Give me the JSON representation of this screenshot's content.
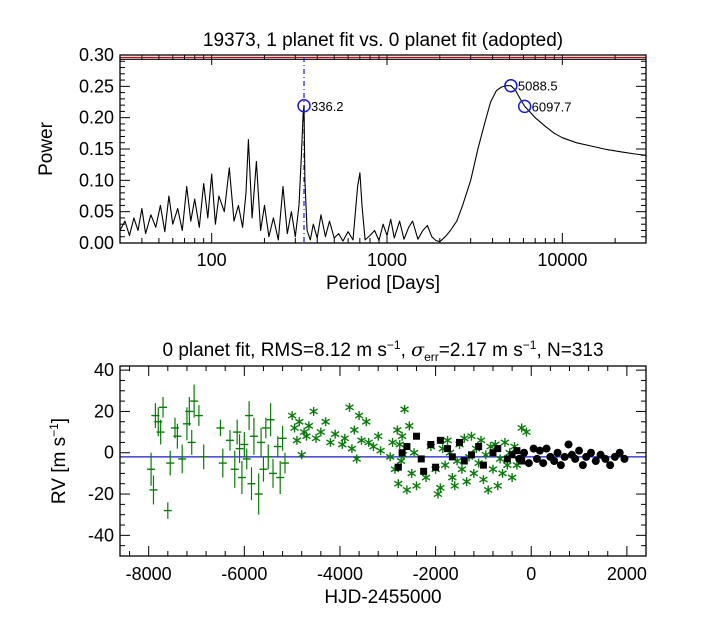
{
  "chart_data": [
    {
      "type": "line",
      "name": "periodogram",
      "title": "19373,  1 planet fit vs. 0 planet fit (adopted)",
      "xlabel": "Period [Days]",
      "ylabel": "Power",
      "xscale": "log",
      "xlim": [
        30,
        30000
      ],
      "ylim": [
        0,
        0.3
      ],
      "x_ticks": [
        100,
        1000,
        10000
      ],
      "x_tick_labels": [
        "100",
        "1000",
        "10000"
      ],
      "y_ticks": [
        0.0,
        0.05,
        0.1,
        0.15,
        0.2,
        0.25,
        0.3
      ],
      "y_tick_labels": [
        "0.00",
        "0.05",
        "0.10",
        "0.15",
        "0.20",
        "0.25",
        "0.30"
      ],
      "threshold_lines": [
        {
          "power": 0.296,
          "color": "#d40000"
        },
        {
          "power": 0.293,
          "color": "#222222"
        }
      ],
      "marker_line": {
        "period": 336.2,
        "color": "#1a1ad0",
        "style": "dash-dot"
      },
      "peaks": [
        {
          "period": 336.2,
          "power": 0.219,
          "label": "336.2"
        },
        {
          "period": 5088.5,
          "power": 0.251,
          "label": "5088.5"
        },
        {
          "period": 6097.7,
          "power": 0.218,
          "label": "6097.7"
        }
      ],
      "curve": {
        "period": [
          30,
          32,
          34,
          36,
          38,
          40,
          42,
          45,
          48,
          51,
          54,
          57,
          60,
          64,
          68,
          72,
          76,
          80,
          85,
          90,
          95,
          100,
          105,
          110,
          118,
          126,
          134,
          142,
          150,
          157,
          162,
          170,
          180,
          190,
          200,
          212,
          225,
          240,
          255,
          270,
          285,
          300,
          315,
          325,
          332,
          336.2,
          340,
          350,
          365,
          380,
          400,
          420,
          445,
          470,
          500,
          530,
          560,
          600,
          640,
          680,
          700,
          720,
          750,
          800,
          850,
          900,
          950,
          1000,
          1050,
          1100,
          1180,
          1250,
          1330,
          1400,
          1500,
          1600,
          1700,
          1800,
          1900,
          2000,
          2150,
          2300,
          2500,
          2700,
          3000,
          3300,
          3600,
          3900,
          4200,
          4500,
          4800,
          5088.5,
          5400,
          5700,
          6097.7,
          6500,
          7000,
          8000,
          9000,
          10000,
          12000,
          15000,
          18000,
          22000,
          26000,
          30000
        ],
        "power": [
          0.02,
          0.035,
          0.012,
          0.04,
          0.02,
          0.055,
          0.015,
          0.045,
          0.025,
          0.06,
          0.018,
          0.075,
          0.03,
          0.055,
          0.02,
          0.09,
          0.035,
          0.07,
          0.025,
          0.095,
          0.04,
          0.11,
          0.03,
          0.075,
          0.05,
          0.12,
          0.035,
          0.06,
          0.025,
          0.08,
          0.165,
          0.04,
          0.13,
          0.02,
          0.06,
          0.01,
          0.04,
          0.005,
          0.09,
          0.015,
          0.05,
          0.01,
          0.06,
          0.14,
          0.205,
          0.219,
          0.1,
          0.02,
          0.005,
          0.03,
          0.008,
          0.045,
          0.01,
          0.035,
          0.008,
          0.015,
          0.003,
          0.018,
          0.005,
          0.09,
          0.112,
          0.06,
          0.005,
          0.012,
          0.02,
          0.004,
          0.03,
          0.012,
          0.038,
          0.008,
          0.035,
          0.006,
          0.025,
          0.035,
          0.006,
          0.02,
          0.028,
          0.01,
          0.004,
          0.002,
          0.01,
          0.02,
          0.035,
          0.06,
          0.1,
          0.15,
          0.19,
          0.225,
          0.243,
          0.249,
          0.251,
          0.251,
          0.244,
          0.232,
          0.218,
          0.21,
          0.2,
          0.186,
          0.175,
          0.168,
          0.16,
          0.154,
          0.149,
          0.145,
          0.142,
          0.14
        ]
      }
    },
    {
      "type": "scatter",
      "name": "radial-velocity",
      "title_parts": {
        "t1": "0 planet fit, RMS=8.12 m s",
        "sup1": "−1",
        "t2": ", ",
        "sigma": "σ",
        "sub": "err",
        "t3": "=2.17 m s",
        "sup2": "−1",
        "t4": ", N=313"
      },
      "xlabel": "HJD-2455000",
      "ylabel_parts": {
        "main": "RV [m s",
        "sup": "−1",
        "end": "]"
      },
      "xlim": [
        -8600,
        2400
      ],
      "ylim": [
        -50,
        42
      ],
      "x_ticks": [
        -8000,
        -6000,
        -4000,
        -2000,
        0,
        2000
      ],
      "x_tick_labels": [
        "-8000",
        "-6000",
        "-4000",
        "-2000",
        "0",
        "2000"
      ],
      "y_ticks": [
        -40,
        -20,
        0,
        20,
        40
      ],
      "y_tick_labels": [
        "-40",
        "-20",
        "0",
        "20",
        "40"
      ],
      "fit_line": {
        "rv": -2,
        "color": "#1a1ad0"
      },
      "colors": {
        "green": "#0a7a0a",
        "black": "#000000"
      },
      "series": [
        {
          "name": "early-errorbars",
          "marker": "plus",
          "color": "green",
          "points": [
            [
              -7950,
              -8,
              8
            ],
            [
              -7900,
              -18,
              7
            ],
            [
              -7860,
              18,
              6
            ],
            [
              -7800,
              15,
              7
            ],
            [
              -7750,
              10,
              6
            ],
            [
              -7700,
              22,
              5
            ],
            [
              -7600,
              -28,
              4
            ],
            [
              -7550,
              -5,
              6
            ],
            [
              -7450,
              12,
              5
            ],
            [
              -7400,
              8,
              6
            ],
            [
              -7300,
              -3,
              7
            ],
            [
              -7200,
              14,
              8
            ],
            [
              -7150,
              20,
              7
            ],
            [
              -7100,
              5,
              6
            ],
            [
              -7050,
              25,
              8
            ],
            [
              -6950,
              18,
              5
            ],
            [
              -6850,
              -2,
              6
            ],
            [
              -6500,
              12,
              4
            ],
            [
              -6450,
              -5,
              7
            ],
            [
              -6300,
              6,
              5
            ],
            [
              -6200,
              -8,
              9
            ],
            [
              -6150,
              10,
              6
            ],
            [
              -6100,
              2,
              7
            ],
            [
              -6050,
              -12,
              8
            ],
            [
              -6000,
              4,
              6
            ],
            [
              -5950,
              -3,
              5
            ],
            [
              -5900,
              18,
              7
            ],
            [
              -5850,
              -15,
              8
            ],
            [
              -5800,
              8,
              9
            ],
            [
              -5700,
              -20,
              10
            ],
            [
              -5650,
              5,
              7
            ],
            [
              -5600,
              -8,
              6
            ],
            [
              -5550,
              12,
              5
            ],
            [
              -5500,
              -2,
              6
            ],
            [
              -5450,
              16,
              8
            ],
            [
              -5400,
              -10,
              7
            ],
            [
              -5300,
              3,
              5
            ],
            [
              -5250,
              -12,
              8
            ],
            [
              -5200,
              7,
              6
            ],
            [
              -5150,
              -5,
              5
            ]
          ]
        },
        {
          "name": "green-stars",
          "marker": "star",
          "color": "green",
          "points": [
            [
              -5000,
              18
            ],
            [
              -4950,
              12
            ],
            [
              -4900,
              6
            ],
            [
              -4850,
              15
            ],
            [
              -4800,
              -1
            ],
            [
              -4750,
              10
            ],
            [
              -4700,
              8
            ],
            [
              -4650,
              13
            ],
            [
              -4550,
              20
            ],
            [
              -4500,
              7
            ],
            [
              -4400,
              10
            ],
            [
              -4300,
              15
            ],
            [
              -4200,
              5
            ],
            [
              -4100,
              9
            ],
            [
              -3950,
              4
            ],
            [
              -3900,
              7
            ],
            [
              -3800,
              22
            ],
            [
              -3750,
              2
            ],
            [
              -3700,
              11
            ],
            [
              -3650,
              -3
            ],
            [
              -3600,
              18
            ],
            [
              -3550,
              6
            ],
            [
              -3450,
              15
            ],
            [
              -3400,
              5
            ],
            [
              -3300,
              3
            ],
            [
              -3200,
              8
            ],
            [
              -3150,
              1
            ],
            [
              -2950,
              -2
            ],
            [
              -2900,
              5
            ],
            [
              -2850,
              -8
            ],
            [
              -2800,
              11
            ],
            [
              -2780,
              -15
            ],
            [
              -2750,
              4
            ],
            [
              -2720,
              -4
            ],
            [
              -2700,
              8
            ],
            [
              -2680,
              -1
            ],
            [
              -2650,
              21
            ],
            [
              -2600,
              -18
            ],
            [
              -2550,
              13
            ],
            [
              -2500,
              -10
            ],
            [
              -2450,
              0
            ],
            [
              -2400,
              -16
            ],
            [
              -2200,
              -12
            ],
            [
              -2100,
              3
            ],
            [
              -2000,
              -8
            ],
            [
              -1950,
              -20
            ],
            [
              -1900,
              -17
            ],
            [
              -1850,
              2
            ],
            [
              -1800,
              -6
            ],
            [
              -1750,
              6
            ],
            [
              -1700,
              0
            ],
            [
              -1650,
              -12
            ],
            [
              -1600,
              -16
            ],
            [
              -1550,
              -4
            ],
            [
              -1500,
              4
            ],
            [
              -1450,
              -8
            ],
            [
              -1400,
              7
            ],
            [
              -1350,
              -14
            ],
            [
              -1300,
              -2
            ],
            [
              -1250,
              8
            ],
            [
              -1200,
              -10
            ],
            [
              -1150,
              2
            ],
            [
              -1100,
              -5
            ],
            [
              -1050,
              6
            ],
            [
              -1000,
              -13
            ],
            [
              -950,
              -1
            ],
            [
              -900,
              -18
            ],
            [
              -850,
              3
            ],
            [
              -800,
              -8
            ],
            [
              -750,
              4
            ],
            [
              -700,
              -16
            ],
            [
              -650,
              -3
            ],
            [
              -600,
              -10
            ],
            [
              -550,
              5
            ],
            [
              -500,
              -6
            ],
            [
              -450,
              0
            ],
            [
              -400,
              -12
            ],
            [
              -350,
              3
            ],
            [
              -300,
              -6
            ],
            [
              -200,
              12
            ],
            [
              -100,
              10
            ]
          ]
        },
        {
          "name": "black-squares",
          "marker": "square",
          "color": "black",
          "points": [
            [
              -2780,
              -7
            ],
            [
              -2700,
              0
            ],
            [
              -2600,
              3
            ],
            [
              -2400,
              8
            ],
            [
              -2300,
              -3
            ],
            [
              -2250,
              -9
            ],
            [
              -2100,
              4
            ],
            [
              -2000,
              -7
            ],
            [
              -1900,
              6
            ],
            [
              -1750,
              2
            ],
            [
              -1650,
              -2
            ],
            [
              -1500,
              5
            ],
            [
              -1400,
              -4
            ],
            [
              -1250,
              -1
            ],
            [
              -1100,
              3
            ],
            [
              -1000,
              -6
            ],
            [
              -800,
              0
            ],
            [
              -700,
              2
            ],
            [
              -500,
              -3
            ],
            [
              -400,
              -1
            ],
            [
              -300,
              1
            ],
            [
              -200,
              -4
            ]
          ]
        },
        {
          "name": "black-circles",
          "marker": "circle",
          "color": "black",
          "points": [
            [
              -250,
              -3
            ],
            [
              -150,
              0
            ],
            [
              -50,
              -5
            ],
            [
              50,
              2
            ],
            [
              120,
              -3
            ],
            [
              180,
              1
            ],
            [
              250,
              -5
            ],
            [
              320,
              2
            ],
            [
              400,
              -2
            ],
            [
              480,
              -4
            ],
            [
              550,
              0
            ],
            [
              620,
              -6
            ],
            [
              700,
              -2
            ],
            [
              780,
              4
            ],
            [
              850,
              -1
            ],
            [
              920,
              -3
            ],
            [
              1000,
              1
            ],
            [
              1080,
              -6
            ],
            [
              1150,
              -2
            ],
            [
              1250,
              0
            ],
            [
              1350,
              -4
            ],
            [
              1450,
              -1
            ],
            [
              1550,
              -3
            ],
            [
              1650,
              -6
            ],
            [
              1750,
              -2
            ],
            [
              1850,
              0
            ],
            [
              1950,
              -3
            ]
          ]
        }
      ]
    }
  ]
}
